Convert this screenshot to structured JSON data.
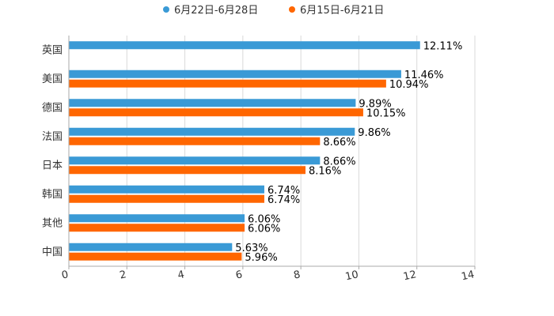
{
  "chart_data": {
    "type": "bar",
    "orientation": "horizontal",
    "categories": [
      "英国",
      "美国",
      "德国",
      "法国",
      "日本",
      "韩国",
      "其他",
      "中国"
    ],
    "series": [
      {
        "name": "6月22日-6月28日",
        "color": "#3a9ad6",
        "values": [
          12.11,
          11.46,
          9.89,
          9.86,
          8.66,
          6.74,
          6.06,
          5.63
        ],
        "labels": [
          "12.11%",
          "11.46%",
          "9.89%",
          "9.86%",
          "8.66%",
          "6.74%",
          "6.06%",
          "5.63%"
        ]
      },
      {
        "name": "6月15日-6月21日",
        "color": "#ff6600",
        "values": [
          null,
          10.94,
          10.15,
          8.66,
          8.16,
          6.74,
          6.06,
          5.96
        ],
        "labels": [
          "",
          "10.94%",
          "10.15%",
          "8.66%",
          "8.16%",
          "6.74%",
          "6.06%",
          "5.96%"
        ]
      }
    ],
    "xlim": [
      0,
      14
    ],
    "xticks": [
      "0",
      "2",
      "4",
      "6",
      "8",
      "10",
      "12",
      "14"
    ],
    "tick_values": [
      0,
      2,
      4,
      6,
      8,
      10,
      12,
      14
    ],
    "grid": true,
    "legend_position": "top-center"
  }
}
